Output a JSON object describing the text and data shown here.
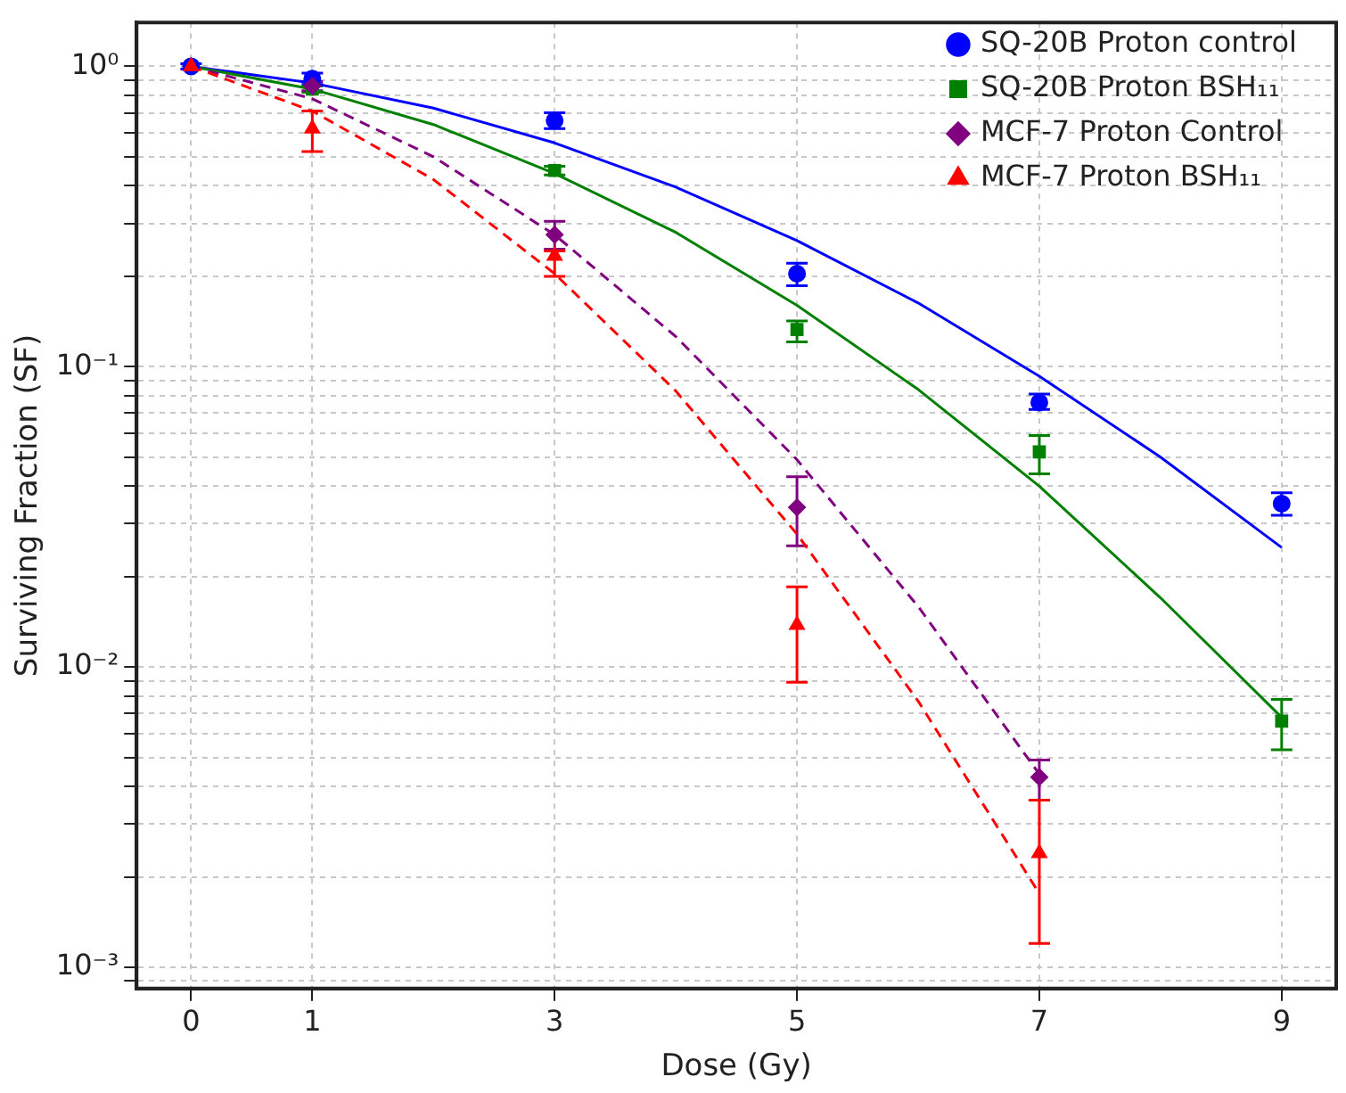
{
  "chart_data": {
    "type": "scatter",
    "xlabel": "Dose (Gy)",
    "ylabel": "Surviving Fraction (SF)",
    "xlim": [
      -0.45,
      9.45
    ],
    "xticks": [
      0,
      1,
      3,
      5,
      7,
      9
    ],
    "ylim": [
      0.00085,
      1.4
    ],
    "log": "y",
    "yticks": [
      {
        "value": 0.0009,
        "label": null
      },
      {
        "value": 0.001,
        "label": "10⁻³"
      },
      {
        "value": 0.002,
        "label": null
      },
      {
        "value": 0.003,
        "label": null
      },
      {
        "value": 0.004,
        "label": null
      },
      {
        "value": 0.005,
        "label": null
      },
      {
        "value": 0.006,
        "label": null
      },
      {
        "value": 0.007,
        "label": null
      },
      {
        "value": 0.008,
        "label": null
      },
      {
        "value": 0.009,
        "label": null
      },
      {
        "value": 0.01,
        "label": "10⁻²"
      },
      {
        "value": 0.02,
        "label": null
      },
      {
        "value": 0.03,
        "label": null
      },
      {
        "value": 0.04,
        "label": null
      },
      {
        "value": 0.05,
        "label": null
      },
      {
        "value": 0.06,
        "label": null
      },
      {
        "value": 0.07,
        "label": null
      },
      {
        "value": 0.08,
        "label": null
      },
      {
        "value": 0.09,
        "label": null
      },
      {
        "value": 0.1,
        "label": "10⁻¹"
      },
      {
        "value": 0.2,
        "label": null
      },
      {
        "value": 0.3,
        "label": null
      },
      {
        "value": 0.4,
        "label": null
      },
      {
        "value": 0.5,
        "label": null
      },
      {
        "value": 0.6,
        "label": null
      },
      {
        "value": 0.7,
        "label": null
      },
      {
        "value": 0.8,
        "label": null
      },
      {
        "value": 0.9,
        "label": null
      },
      {
        "value": 1,
        "label": "10⁰"
      }
    ],
    "grid": true,
    "legend": "top right",
    "series": [
      {
        "name": "SQ-20B Proton control",
        "marker": "circle",
        "color": "#0000ff",
        "x": [
          0,
          1,
          3,
          5,
          7,
          9
        ],
        "values": [
          1.0,
          0.91,
          0.66,
          0.204,
          0.076,
          0.035
        ],
        "errors": [
          0.02,
          0.04,
          [
            0.62,
            0.7
          ],
          [
            0.186,
            0.221
          ],
          [
            0.072,
            0.081
          ],
          [
            0.032,
            0.038
          ]
        ]
      },
      {
        "name": "SQ-20B Proton BSH₁₁",
        "marker": "square",
        "color": "#008000",
        "x": [
          1,
          3,
          5,
          7,
          9
        ],
        "values": [
          0.84,
          0.45,
          0.133,
          0.052,
          0.0066
        ],
        "errors": [
          0.02,
          0.015,
          [
            0.121,
            0.142
          ],
          [
            0.044,
            0.059
          ],
          [
            0.0053,
            0.0078
          ]
        ]
      },
      {
        "name": "MCF-7 Proton Control",
        "marker": "diamond",
        "color": "#800080",
        "x": [
          1,
          3,
          5,
          7
        ],
        "values": [
          0.86,
          0.275,
          0.034,
          0.0043
        ],
        "errors": [
          0.03,
          [
            0.246,
            0.305
          ],
          [
            0.0253,
            0.043
          ],
          [
            0.0036,
            0.0049
          ]
        ]
      },
      {
        "name": "MCF-7 Proton BSH₁₁",
        "marker": "triangle",
        "color": "#ff0000",
        "x": [
          0,
          1,
          3,
          5,
          7
        ],
        "values": [
          1.0,
          0.62,
          0.234,
          0.0138,
          0.0024
        ],
        "errors": [
          null,
          [
            0.52,
            0.71
          ],
          [
            0.2,
            0.243
          ],
          [
            0.0089,
            0.0185
          ],
          [
            0.0012,
            0.0036
          ]
        ]
      },
      {
        "type": "line",
        "marker": "none",
        "line_style": "solid",
        "color": "#0000ff",
        "x": [
          0,
          1,
          2,
          3,
          4,
          5,
          6,
          7,
          8,
          9
        ],
        "values": [
          1.0,
          0.88,
          0.726,
          0.556,
          0.396,
          0.263,
          0.163,
          0.093,
          0.05,
          0.025
        ]
      },
      {
        "type": "line",
        "marker": "none",
        "line_style": "solid",
        "color": "#008000",
        "x": [
          0,
          1,
          2,
          3,
          4,
          5,
          6,
          7,
          8,
          9
        ],
        "values": [
          1.0,
          0.84,
          0.64,
          0.44,
          0.28,
          0.16,
          0.084,
          0.04,
          0.017,
          0.0068
        ]
      },
      {
        "type": "line",
        "marker": "none",
        "line_style": "dashed",
        "color": "#800080",
        "x": [
          0,
          1,
          2,
          3,
          4,
          5,
          6,
          7
        ],
        "values": [
          1.0,
          0.78,
          0.5,
          0.275,
          0.126,
          0.049,
          0.0159,
          0.0044
        ]
      },
      {
        "type": "line",
        "marker": "none",
        "line_style": "dashed",
        "color": "#ff0000",
        "x": [
          0,
          1,
          2,
          3,
          4,
          5,
          6,
          7
        ],
        "values": [
          1.0,
          0.71,
          0.42,
          0.204,
          0.083,
          0.0277,
          0.0077,
          0.00176
        ]
      }
    ]
  }
}
